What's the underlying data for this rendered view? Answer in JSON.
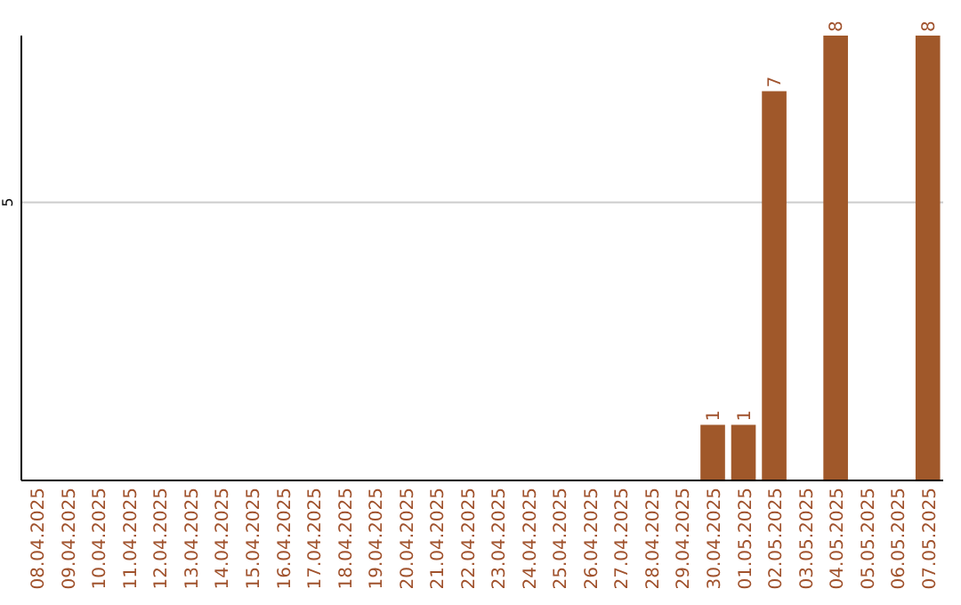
{
  "chart_data": {
    "type": "bar",
    "categories": [
      "08.04.2025",
      "09.04.2025",
      "10.04.2025",
      "11.04.2025",
      "12.04.2025",
      "13.04.2025",
      "14.04.2025",
      "15.04.2025",
      "16.04.2025",
      "17.04.2025",
      "18.04.2025",
      "19.04.2025",
      "20.04.2025",
      "21.04.2025",
      "22.04.2025",
      "23.04.2025",
      "24.04.2025",
      "25.04.2025",
      "26.04.2025",
      "27.04.2025",
      "28.04.2025",
      "29.04.2025",
      "30.04.2025",
      "01.05.2025",
      "02.05.2025",
      "03.05.2025",
      "04.05.2025",
      "05.05.2025",
      "06.05.2025",
      "07.05.2025"
    ],
    "values": [
      null,
      null,
      null,
      null,
      null,
      null,
      null,
      null,
      null,
      null,
      null,
      null,
      null,
      null,
      null,
      null,
      null,
      null,
      null,
      null,
      null,
      null,
      1,
      1,
      7,
      null,
      8,
      null,
      null,
      8
    ],
    "data_labels": true,
    "color": "#a0582a",
    "ylim": [
      0,
      8
    ],
    "yticks": [
      5
    ],
    "grid": "y"
  }
}
